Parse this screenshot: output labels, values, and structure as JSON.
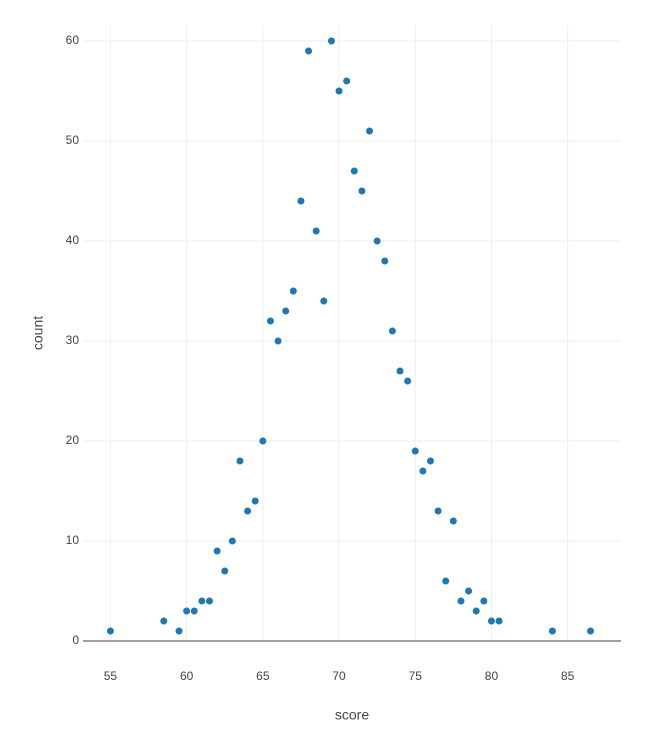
{
  "chart_data": {
    "type": "scatter",
    "x_label": "score",
    "y_label": "count",
    "x": [
      55,
      58.5,
      59.5,
      60,
      60.5,
      61,
      61.5,
      62,
      62.5,
      63,
      63.5,
      64,
      64.5,
      65,
      65.5,
      66,
      66.5,
      67,
      67.5,
      68,
      68.5,
      69,
      69.5,
      70,
      70.5,
      71,
      71.5,
      72,
      72.5,
      73,
      73.5,
      74,
      74.5,
      75,
      75.5,
      76,
      76.5,
      77,
      77.5,
      78,
      78.5,
      79,
      79.5,
      80,
      80.5,
      84,
      86.5
    ],
    "values": [
      1,
      2,
      1,
      3,
      3,
      4,
      4,
      9,
      7,
      10,
      18,
      13,
      14,
      20,
      32,
      30,
      33,
      35,
      44,
      59,
      41,
      34,
      60,
      55,
      56,
      47,
      45,
      51,
      40,
      38,
      31,
      27,
      26,
      19,
      17,
      18,
      13,
      6,
      12,
      4,
      5,
      3,
      4,
      2,
      2,
      1,
      1
    ],
    "color": "#1f77b4",
    "xlim": [
      53.2,
      88.5
    ],
    "xticks": [
      55,
      60,
      65,
      70,
      75,
      80,
      85
    ],
    "ylim": [
      0,
      61.6
    ],
    "yticks": [
      0,
      10,
      20,
      30,
      40,
      50,
      60
    ],
    "grid": true
  }
}
